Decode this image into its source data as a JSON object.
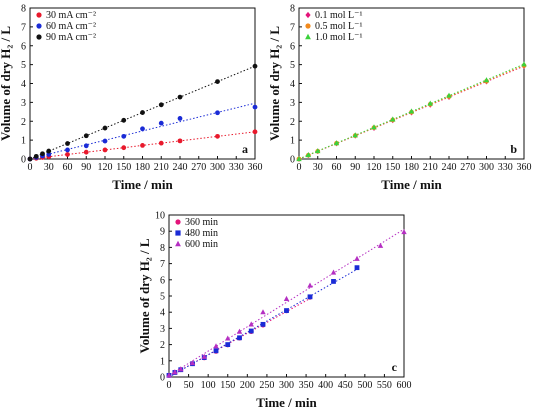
{
  "chart_data": [
    {
      "id": "a",
      "type": "scatter",
      "panel_letter": "a",
      "xlabel": "Time / min",
      "ylabel": "Volume of dry H₂ / L",
      "xlim": [
        0,
        360
      ],
      "ylim": [
        0,
        8
      ],
      "xticks": [
        0,
        30,
        60,
        90,
        120,
        150,
        180,
        210,
        240,
        270,
        300,
        330,
        360
      ],
      "yticks": [
        0,
        1,
        2,
        3,
        4,
        5,
        6,
        7,
        8
      ],
      "legend_position": "top-left",
      "grid": false,
      "series": [
        {
          "name": "30 mA cm⁻²",
          "marker": "circle",
          "color": "#e8192c",
          "x": [
            0,
            10,
            20,
            30,
            60,
            90,
            120,
            150,
            180,
            210,
            240,
            300,
            360
          ],
          "y": [
            0,
            0.04,
            0.08,
            0.12,
            0.24,
            0.36,
            0.48,
            0.6,
            0.72,
            0.84,
            0.96,
            1.2,
            1.44
          ]
        },
        {
          "name": "60 mA cm⁻²",
          "marker": "circle",
          "color": "#1a2bd6",
          "x": [
            0,
            10,
            20,
            30,
            60,
            90,
            120,
            150,
            180,
            210,
            240,
            300,
            360
          ],
          "y": [
            0,
            0.08,
            0.16,
            0.24,
            0.48,
            0.7,
            0.95,
            1.2,
            1.6,
            1.9,
            2.15,
            2.45,
            2.75
          ]
        },
        {
          "name": "90 mA cm⁻²",
          "marker": "circle",
          "color": "#111111",
          "x": [
            0,
            10,
            20,
            30,
            60,
            90,
            120,
            150,
            180,
            210,
            240,
            300,
            360
          ],
          "y": [
            0,
            0.14,
            0.28,
            0.42,
            0.82,
            1.23,
            1.64,
            2.05,
            2.46,
            2.87,
            3.28,
            4.1,
            4.92
          ]
        }
      ]
    },
    {
      "id": "b",
      "type": "scatter",
      "panel_letter": "b",
      "xlabel": "Time / min",
      "ylabel": "Volume of dry H₂ / L",
      "xlim": [
        0,
        360
      ],
      "ylim": [
        0,
        8
      ],
      "xticks": [
        0,
        30,
        60,
        90,
        120,
        150,
        180,
        210,
        240,
        270,
        300,
        330,
        360
      ],
      "yticks": [
        0,
        1,
        2,
        3,
        4,
        5,
        6,
        7,
        8
      ],
      "legend_position": "top-left",
      "grid": false,
      "series": [
        {
          "name": "0.1 mol L⁻¹",
          "marker": "diamond",
          "color": "#e3147a",
          "x": [
            0,
            15,
            30,
            60,
            90,
            120,
            150,
            180,
            210,
            240,
            300,
            360
          ],
          "y": [
            0,
            0.2,
            0.41,
            0.82,
            1.23,
            1.64,
            2.05,
            2.46,
            2.87,
            3.28,
            4.1,
            4.92
          ]
        },
        {
          "name": "0.5 mol L⁻¹",
          "marker": "circle",
          "color": "#f28a1c",
          "x": [
            0,
            15,
            30,
            60,
            90,
            120,
            150,
            180,
            210,
            240,
            300,
            360
          ],
          "y": [
            0,
            0.2,
            0.41,
            0.83,
            1.24,
            1.66,
            2.07,
            2.48,
            2.9,
            3.31,
            4.12,
            4.95
          ]
        },
        {
          "name": "1.0 mol L⁻¹",
          "marker": "triangle",
          "color": "#3bd13b",
          "x": [
            0,
            15,
            30,
            60,
            90,
            120,
            150,
            180,
            210,
            240,
            300,
            360
          ],
          "y": [
            0,
            0.21,
            0.42,
            0.84,
            1.26,
            1.68,
            2.1,
            2.52,
            2.94,
            3.36,
            4.18,
            5.02
          ]
        }
      ]
    },
    {
      "id": "c",
      "type": "scatter",
      "panel_letter": "c",
      "xlabel": "Time / min",
      "ylabel": "Volume of dry H₂ / L",
      "xlim": [
        0,
        600
      ],
      "ylim": [
        0,
        10
      ],
      "xticks": [
        0,
        50,
        100,
        150,
        200,
        250,
        300,
        350,
        400,
        450,
        500,
        550,
        600
      ],
      "yticks": [
        0,
        1,
        2,
        3,
        4,
        5,
        6,
        7,
        8,
        9,
        10
      ],
      "legend_position": "top-left",
      "grid": false,
      "series": [
        {
          "name": "360 min",
          "marker": "circle",
          "color": "#e3147a",
          "x": [
            0,
            15,
            30,
            60,
            90,
            120,
            150,
            180,
            210,
            240,
            300,
            360
          ],
          "y": [
            0.1,
            0.28,
            0.45,
            0.82,
            1.18,
            1.58,
            1.98,
            2.4,
            2.8,
            3.2,
            4.08,
            4.92
          ]
        },
        {
          "name": "480 min",
          "marker": "square",
          "color": "#1a2bd6",
          "x": [
            0,
            15,
            30,
            60,
            90,
            120,
            150,
            180,
            210,
            240,
            300,
            360,
            420,
            480
          ],
          "y": [
            0.1,
            0.28,
            0.45,
            0.82,
            1.2,
            1.62,
            2.0,
            2.42,
            2.84,
            3.25,
            4.1,
            4.95,
            5.9,
            6.75
          ]
        },
        {
          "name": "600 min",
          "marker": "triangle",
          "color": "#b52fc2",
          "x": [
            0,
            15,
            30,
            60,
            90,
            120,
            150,
            180,
            210,
            240,
            300,
            360,
            420,
            480,
            540,
            600
          ],
          "y": [
            0.1,
            0.3,
            0.48,
            0.86,
            1.25,
            1.9,
            2.38,
            2.8,
            3.25,
            4.0,
            4.82,
            5.65,
            6.45,
            7.3,
            8.1,
            8.95
          ]
        }
      ]
    }
  ]
}
